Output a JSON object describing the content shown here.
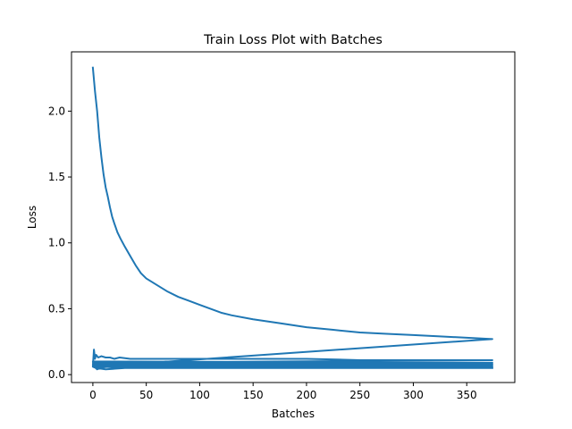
{
  "chart_data": {
    "type": "line",
    "title": "Train Loss Plot with Batches",
    "xlabel": "Batches",
    "ylabel": "Loss",
    "xlim": [
      -20,
      395
    ],
    "ylim": [
      -0.06,
      2.45
    ],
    "x_ticks": [
      0,
      50,
      100,
      150,
      200,
      250,
      300,
      350
    ],
    "y_ticks": [
      0.0,
      0.5,
      1.0,
      1.5,
      2.0
    ],
    "x_tick_labels": [
      "0",
      "50",
      "100",
      "150",
      "200",
      "250",
      "300",
      "350"
    ],
    "y_tick_labels": [
      "0.0",
      "0.5",
      "1.0",
      "1.5",
      "2.0"
    ],
    "grid": false,
    "line_color": "#1f77b4",
    "series": [
      {
        "points": [
          [
            0,
            2.33
          ],
          [
            2,
            2.15
          ],
          [
            4,
            2.0
          ],
          [
            6,
            1.8
          ],
          [
            8,
            1.65
          ],
          [
            10,
            1.52
          ],
          [
            12,
            1.42
          ],
          [
            14,
            1.35
          ],
          [
            16,
            1.27
          ],
          [
            18,
            1.2
          ],
          [
            20,
            1.15
          ],
          [
            23,
            1.08
          ],
          [
            26,
            1.03
          ],
          [
            30,
            0.97
          ],
          [
            35,
            0.9
          ],
          [
            40,
            0.83
          ],
          [
            45,
            0.77
          ],
          [
            50,
            0.73
          ],
          [
            60,
            0.68
          ],
          [
            70,
            0.63
          ],
          [
            80,
            0.59
          ],
          [
            90,
            0.56
          ],
          [
            100,
            0.53
          ],
          [
            110,
            0.5
          ],
          [
            120,
            0.47
          ],
          [
            130,
            0.45
          ],
          [
            150,
            0.42
          ],
          [
            175,
            0.39
          ],
          [
            200,
            0.36
          ],
          [
            225,
            0.34
          ],
          [
            250,
            0.32
          ],
          [
            275,
            0.31
          ],
          [
            300,
            0.3
          ],
          [
            325,
            0.29
          ],
          [
            350,
            0.28
          ],
          [
            374,
            0.27
          ],
          [
            0,
            0.06
          ],
          [
            1,
            0.19
          ],
          [
            2,
            0.12
          ],
          [
            3,
            0.15
          ],
          [
            5,
            0.13
          ],
          [
            8,
            0.14
          ],
          [
            12,
            0.13
          ],
          [
            16,
            0.13
          ],
          [
            20,
            0.12
          ],
          [
            25,
            0.13
          ],
          [
            35,
            0.12
          ],
          [
            45,
            0.12
          ],
          [
            60,
            0.12
          ],
          [
            100,
            0.12
          ],
          [
            150,
            0.12
          ],
          [
            200,
            0.12
          ],
          [
            250,
            0.11
          ],
          [
            300,
            0.11
          ],
          [
            374,
            0.11
          ],
          [
            0,
            0.09
          ],
          [
            6,
            0.07
          ],
          [
            12,
            0.09
          ],
          [
            20,
            0.08
          ],
          [
            40,
            0.09
          ],
          [
            80,
            0.09
          ],
          [
            150,
            0.09
          ],
          [
            250,
            0.09
          ],
          [
            374,
            0.09
          ],
          [
            0,
            0.1
          ],
          [
            8,
            0.06
          ],
          [
            16,
            0.07
          ],
          [
            30,
            0.08
          ],
          [
            80,
            0.08
          ],
          [
            200,
            0.08
          ],
          [
            374,
            0.08
          ],
          [
            0,
            0.08
          ],
          [
            5,
            0.05
          ],
          [
            15,
            0.06
          ],
          [
            40,
            0.07
          ],
          [
            120,
            0.07
          ],
          [
            250,
            0.07
          ],
          [
            374,
            0.07
          ],
          [
            0,
            0.07
          ],
          [
            4,
            0.04
          ],
          [
            10,
            0.06
          ],
          [
            25,
            0.05
          ],
          [
            60,
            0.06
          ],
          [
            150,
            0.06
          ],
          [
            300,
            0.06
          ],
          [
            374,
            0.06
          ],
          [
            0,
            0.06
          ],
          [
            3,
            0.05
          ],
          [
            12,
            0.04
          ],
          [
            30,
            0.05
          ],
          [
            80,
            0.05
          ],
          [
            200,
            0.05
          ],
          [
            374,
            0.05
          ]
        ]
      }
    ]
  }
}
